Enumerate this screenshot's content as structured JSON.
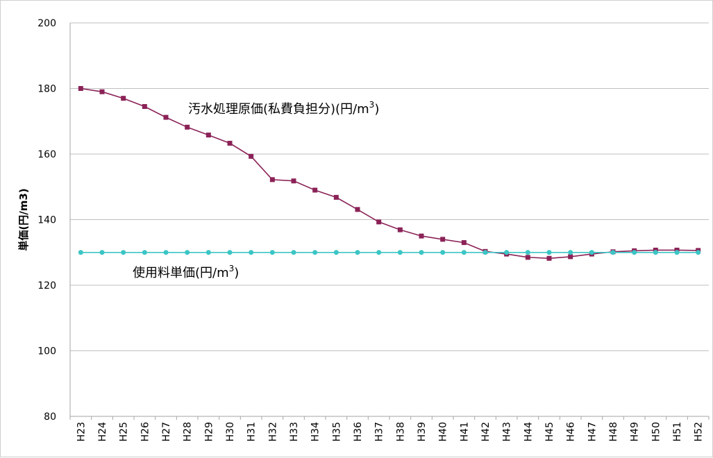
{
  "chart_data": {
    "type": "line",
    "ylabel": "単価(円/m3)",
    "ylim": [
      80,
      200
    ],
    "yticks": [
      80,
      100,
      120,
      140,
      160,
      180,
      200
    ],
    "grid": true,
    "categories": [
      "H23",
      "H24",
      "H25",
      "H26",
      "H27",
      "H28",
      "H29",
      "H30",
      "H31",
      "H32",
      "H33",
      "H34",
      "H35",
      "H36",
      "H37",
      "H38",
      "H39",
      "H40",
      "H41",
      "H42",
      "H43",
      "H44",
      "H45",
      "H46",
      "H47",
      "H48",
      "H49",
      "H50",
      "H51",
      "H52"
    ],
    "series": [
      {
        "name": "汚水処理原価(私費負担分)(円/m³)",
        "color": "#8b2257",
        "marker": "square",
        "values": [
          180.0,
          179.0,
          177.0,
          174.5,
          171.2,
          168.2,
          165.8,
          163.3,
          159.3,
          152.2,
          151.8,
          149.0,
          146.8,
          143.1,
          139.3,
          136.9,
          135.0,
          134.0,
          133.0,
          130.3,
          129.5,
          128.5,
          128.2,
          128.7,
          129.5,
          130.2,
          130.5,
          130.7,
          130.7,
          130.6
        ]
      },
      {
        "name": "使用料単価(円/m³)",
        "color": "#3cc5c5",
        "marker": "circle",
        "values": [
          130,
          130,
          130,
          130,
          130,
          130,
          130,
          130,
          130,
          130,
          130,
          130,
          130,
          130,
          130,
          130,
          130,
          130,
          130,
          130,
          130,
          130,
          130,
          130,
          130,
          130,
          130,
          130,
          130,
          130
        ]
      }
    ],
    "annotations": [
      {
        "series_index": 0,
        "text": "汚水処理原価(私費負担分)(円/m",
        "sup": "3",
        "close": ")"
      },
      {
        "series_index": 1,
        "text": "使用料単価(円/m",
        "sup": "3",
        "close": ")"
      }
    ]
  }
}
